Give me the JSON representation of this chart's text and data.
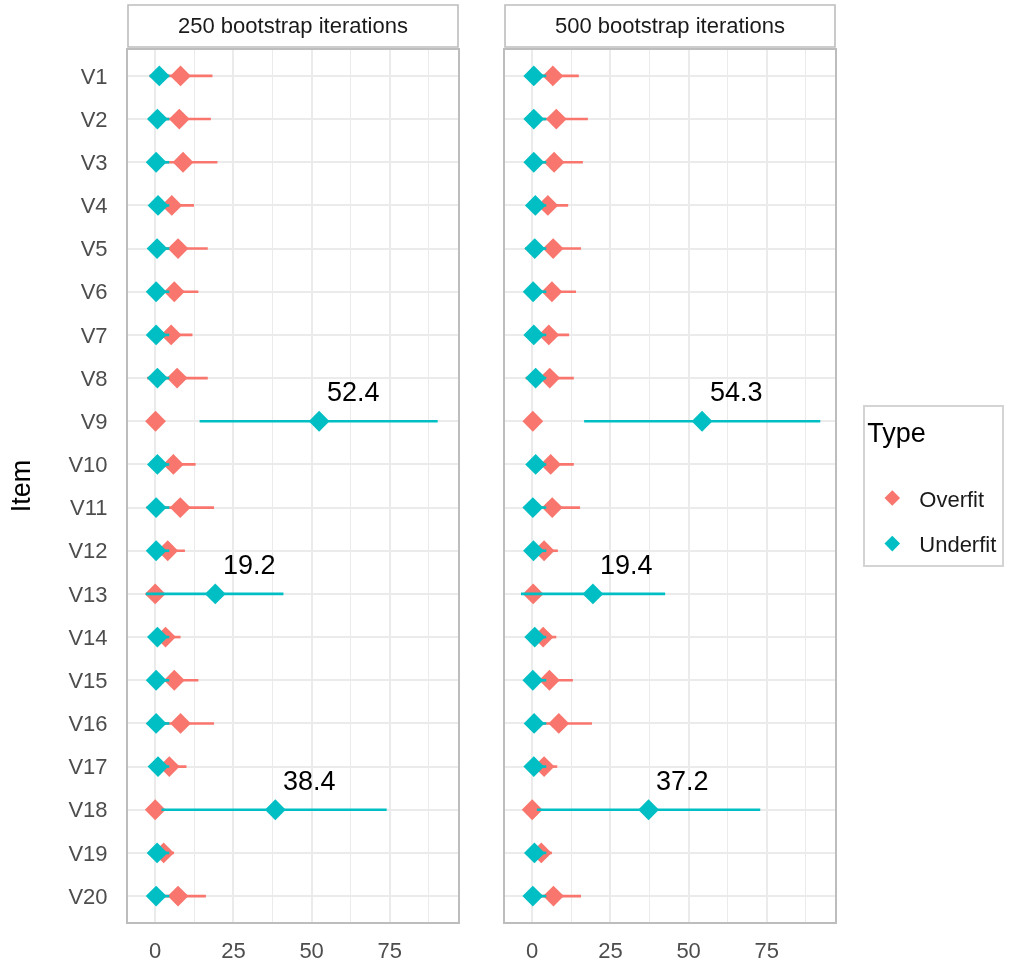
{
  "chart_data": [
    {
      "type": "scatter",
      "title": "250 bootstrap iterations",
      "orientation": "horizontal",
      "ylabel": "Item",
      "marker": "diamond",
      "grid": true,
      "legend": "right",
      "categories": [
        "V1",
        "V2",
        "V3",
        "V4",
        "V5",
        "V6",
        "V7",
        "V8",
        "V9",
        "V10",
        "V11",
        "V12",
        "V13",
        "V14",
        "V15",
        "V16",
        "V17",
        "V18",
        "V19",
        "V20"
      ],
      "xlim": [
        -8.7,
        96.8
      ],
      "xticks": [
        0,
        25,
        50,
        75
      ],
      "series": [
        {
          "name": "Overfit",
          "color": "#f8766d",
          "values": [
            8.1,
            7.7,
            8.9,
            5.3,
            7.3,
            6.1,
            5.1,
            7.0,
            0.1,
            5.8,
            8.0,
            4.0,
            0,
            3.3,
            6.1,
            8.1,
            4.5,
            0,
            2.7,
            7.3
          ],
          "errors": [
            [
              -1.8,
              18.3
            ],
            [
              -2.3,
              17.8
            ],
            [
              -2.0,
              19.9
            ],
            [
              -1.8,
              12.4
            ],
            [
              -2.1,
              16.8
            ],
            [
              -1.6,
              13.8
            ],
            [
              -1.8,
              11.9
            ],
            [
              -2.6,
              16.8
            ],
            null,
            [
              -1.4,
              12.9
            ],
            [
              -2.8,
              18.8
            ],
            [
              -1.3,
              9.5
            ],
            null,
            [
              -1.3,
              8.1
            ],
            [
              -1.6,
              13.8
            ],
            [
              -2.7,
              18.8
            ],
            [
              -1.3,
              10.0
            ],
            null,
            [
              -1.0,
              6.0
            ],
            [
              -2.3,
              16.2
            ]
          ]
        },
        {
          "name": "Underfit",
          "color": "#00bfc4",
          "values": [
            1.3,
            0.7,
            0.3,
            0.9,
            0.6,
            0.3,
            0.3,
            0.7,
            52.4,
            0.7,
            0.3,
            0.3,
            19.2,
            0.7,
            0.3,
            0.3,
            0.9,
            38.4,
            0.6,
            0.3
          ],
          "errors": [
            [
              -1.5,
              4.5
            ],
            [
              -1.5,
              4.5
            ],
            [
              -1.5,
              4.5
            ],
            [
              -1.5,
              4.5
            ],
            [
              -1.5,
              4.5
            ],
            [
              -1.5,
              4.5
            ],
            [
              -1.5,
              4.5
            ],
            [
              -1.5,
              4.5
            ],
            [
              14.2,
              90.3
            ],
            [
              -1.5,
              4.5
            ],
            [
              -1.5,
              4.5
            ],
            [
              -1.5,
              4.5
            ],
            [
              -3.0,
              41.0
            ],
            [
              -1.5,
              4.5
            ],
            [
              -1.5,
              4.5
            ],
            [
              -1.5,
              4.5
            ],
            [
              -1.5,
              4.5
            ],
            [
              2.0,
              74.0
            ],
            [
              -1.5,
              4.5
            ],
            [
              -1.5,
              4.5
            ]
          ],
          "value_labels": [
            null,
            null,
            null,
            null,
            null,
            null,
            null,
            null,
            "52.4",
            null,
            null,
            null,
            "19.2",
            null,
            null,
            null,
            null,
            "38.4",
            null,
            null
          ]
        }
      ]
    },
    {
      "type": "scatter",
      "title": "500 bootstrap iterations",
      "orientation": "horizontal",
      "marker": "diamond",
      "grid": true,
      "tick_labels": "x",
      "legend": "right",
      "legend_title": "Type",
      "categories": [
        "V1",
        "V2",
        "V3",
        "V4",
        "V5",
        "V6",
        "V7",
        "V8",
        "V9",
        "V10",
        "V11",
        "V12",
        "V13",
        "V14",
        "V15",
        "V16",
        "V17",
        "V18",
        "V19",
        "V20"
      ],
      "xlim": [
        -8.7,
        96.8
      ],
      "xticks": [
        0,
        25,
        50,
        75
      ],
      "series": [
        {
          "name": "Overfit",
          "color": "#f8766d",
          "values": [
            6.6,
            7.7,
            7.0,
            5.0,
            6.7,
            6.3,
            5.3,
            5.6,
            0.2,
            5.9,
            6.4,
            3.8,
            0.3,
            3.5,
            5.5,
            8.5,
            3.8,
            0,
            2.9,
            6.8
          ],
          "errors": [
            [
              -1.8,
              14.9
            ],
            [
              -2.3,
              17.8
            ],
            [
              -2.0,
              16.2
            ],
            [
              -1.5,
              11.5
            ],
            [
              -2.3,
              15.6
            ],
            [
              -1.3,
              14.0
            ],
            [
              -1.3,
              11.8
            ],
            [
              -2.1,
              13.3
            ],
            null,
            [
              -1.5,
              13.3
            ],
            [
              -2.7,
              15.3
            ],
            [
              -1.0,
              8.2
            ],
            null,
            [
              -1.0,
              7.7
            ],
            [
              -1.8,
              13.0
            ],
            [
              -2.1,
              19.1
            ],
            [
              -1.0,
              8.0
            ],
            null,
            [
              -1.0,
              6.3
            ],
            [
              -1.8,
              15.6
            ]
          ]
        },
        {
          "name": "Underfit",
          "color": "#00bfc4",
          "values": [
            0.5,
            0.5,
            0.5,
            1.0,
            0.8,
            0.3,
            0.5,
            1.1,
            54.3,
            1.1,
            0.2,
            0.4,
            19.4,
            0.8,
            0.2,
            0.6,
            0.5,
            37.2,
            0.7,
            0.2
          ],
          "errors": [
            [
              -1.5,
              4.5
            ],
            [
              -1.5,
              4.5
            ],
            [
              -1.5,
              4.5
            ],
            [
              -1.5,
              4.5
            ],
            [
              -1.5,
              4.5
            ],
            [
              -1.5,
              4.5
            ],
            [
              -1.5,
              4.5
            ],
            [
              -1.5,
              4.5
            ],
            [
              16.6,
              92.1
            ],
            [
              -1.5,
              4.5
            ],
            [
              -1.5,
              4.5
            ],
            [
              -1.5,
              4.5
            ],
            [
              -3.6,
              42.5
            ],
            [
              -1.5,
              4.5
            ],
            [
              -1.5,
              4.5
            ],
            [
              -1.5,
              4.5
            ],
            [
              -1.5,
              4.5
            ],
            [
              1.5,
              72.9
            ],
            [
              -1.5,
              4.5
            ],
            [
              -1.5,
              4.5
            ]
          ],
          "value_labels": [
            null,
            null,
            null,
            null,
            null,
            null,
            null,
            null,
            "54.3",
            null,
            null,
            null,
            "19.4",
            null,
            null,
            null,
            null,
            "37.2",
            null,
            null
          ]
        }
      ]
    }
  ]
}
